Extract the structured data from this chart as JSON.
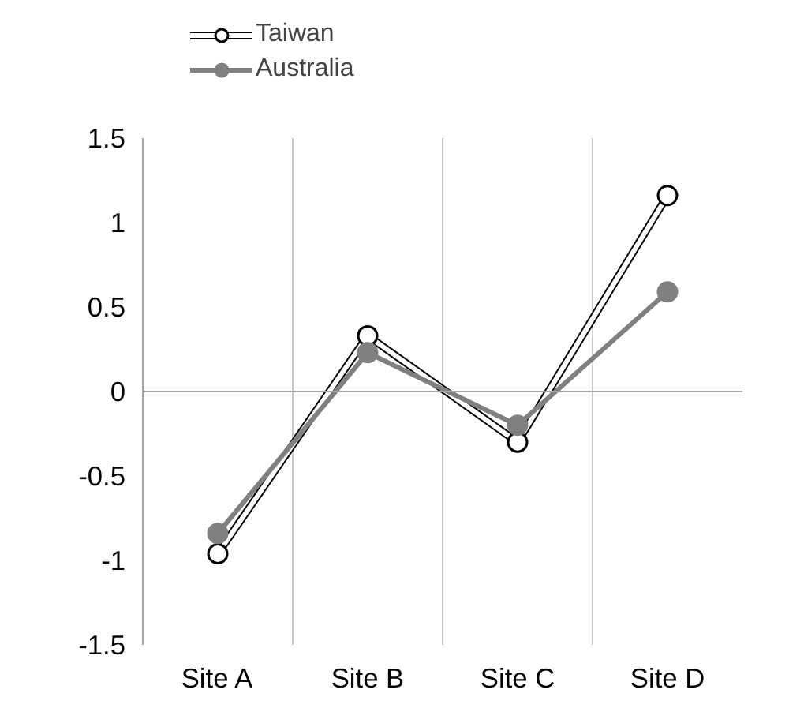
{
  "chart_data": {
    "type": "line",
    "categories": [
      "Site A",
      "Site B",
      "Site C",
      "Site D"
    ],
    "series": [
      {
        "name": "Taiwan",
        "color": "#ffffff",
        "values": [
          -0.96,
          0.33,
          -0.3,
          1.16
        ]
      },
      {
        "name": "Australia",
        "color": "#808080",
        "values": [
          -0.84,
          0.23,
          -0.2,
          0.59
        ]
      }
    ],
    "ylim": [
      -1.5,
      1.5
    ],
    "yticks": [
      -1.5,
      -1,
      -0.5,
      0,
      0.5,
      1,
      1.5
    ],
    "ref_lines": [
      {
        "axis": "y",
        "value": 0,
        "color": "#a6a6a6"
      }
    ],
    "grid": "x",
    "legend": "top left",
    "marker": "circle",
    "line_style": "solid"
  }
}
